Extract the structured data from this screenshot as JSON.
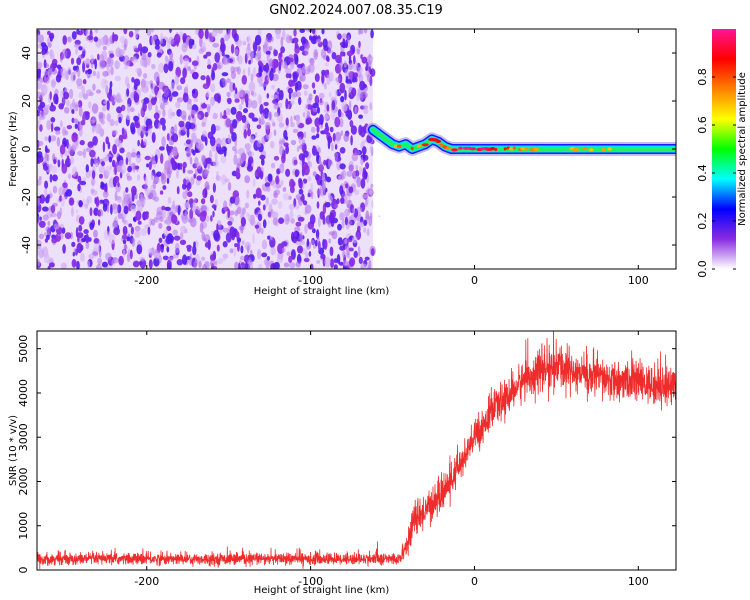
{
  "title": "GN02.2024.007.08.35.C19",
  "chart_data": [
    {
      "type": "heatmap",
      "xlabel": "Height of straight line (km)",
      "ylabel": "Frequency (Hz)",
      "xlim": [
        -267,
        123
      ],
      "ylim": [
        -50,
        50
      ],
      "xticks": [
        -200,
        -100,
        0,
        100
      ],
      "yticks": [
        -40,
        -20,
        0,
        20,
        40
      ],
      "noise_region": {
        "x": [
          -267,
          -62
        ],
        "y": [
          -50,
          50
        ],
        "typical_amplitude": [
          0.1,
          0.3
        ]
      },
      "signal_track": [
        {
          "x": -62,
          "y": 8,
          "amp": 0.5
        },
        {
          "x": -58,
          "y": 6,
          "amp": 0.55
        },
        {
          "x": -54,
          "y": 4,
          "amp": 0.6
        },
        {
          "x": -50,
          "y": 2,
          "amp": 0.7
        },
        {
          "x": -46,
          "y": 1,
          "amp": 0.8
        },
        {
          "x": -42,
          "y": 2,
          "amp": 0.75
        },
        {
          "x": -38,
          "y": 0,
          "amp": 0.7
        },
        {
          "x": -34,
          "y": 1,
          "amp": 0.75
        },
        {
          "x": -30,
          "y": 2,
          "amp": 0.8
        },
        {
          "x": -26,
          "y": 4,
          "amp": 0.85
        },
        {
          "x": -22,
          "y": 3,
          "amp": 0.8
        },
        {
          "x": -18,
          "y": 1,
          "amp": 0.8
        },
        {
          "x": -14,
          "y": 0,
          "amp": 0.85
        },
        {
          "x": -5,
          "y": 0,
          "amp": 0.9
        },
        {
          "x": 5,
          "y": 0,
          "amp": 0.95
        },
        {
          "x": 15,
          "y": 0,
          "amp": 0.85
        },
        {
          "x": 30,
          "y": 0,
          "amp": 0.65
        },
        {
          "x": 60,
          "y": 0,
          "amp": 0.6
        },
        {
          "x": 90,
          "y": 0,
          "amp": 0.65
        },
        {
          "x": 123,
          "y": 0,
          "amp": 0.55
        }
      ],
      "colorbar": {
        "label": "Normalized spectral amplitude",
        "range": [
          0,
          1
        ],
        "ticks": [
          0.0,
          0.2,
          0.4,
          0.6,
          0.8
        ],
        "tick_labels": [
          "0.0",
          "0.2",
          "0.4",
          "0.6",
          "0.8"
        ],
        "colors": [
          "#ffffff",
          "#8a2be2",
          "#0000ff",
          "#00ffff",
          "#00ff00",
          "#ffff00",
          "#ff8000",
          "#ff0000",
          "#ff1493"
        ]
      }
    },
    {
      "type": "line",
      "xlabel": "Height of straight line (km)",
      "ylabel": "SNR (10 * v/v)",
      "xlim": [
        -267,
        123
      ],
      "ylim": [
        0,
        5400
      ],
      "xticks": [
        -200,
        -100,
        0,
        100
      ],
      "yticks": [
        0,
        1000,
        2000,
        3000,
        4000,
        5000
      ],
      "color": "#ee2c2c",
      "series": [
        {
          "x": [
            -267,
            -200,
            -100,
            -45,
            -40,
            -37,
            -35,
            -30,
            -25,
            -20,
            -15,
            -10,
            -5,
            0,
            5,
            10,
            20,
            30,
            40,
            50,
            60,
            70,
            80,
            90,
            100,
            110,
            123
          ],
          "y": [
            250,
            250,
            250,
            250,
            700,
            1200,
            1050,
            1400,
            1500,
            1700,
            1950,
            2300,
            2600,
            3000,
            3250,
            3550,
            3900,
            4300,
            4500,
            4600,
            4500,
            4400,
            4300,
            4250,
            4250,
            4150,
            4200
          ],
          "noise_amplitude": [
            120,
            120,
            120,
            120,
            300,
            350,
            350,
            350,
            350,
            350,
            350,
            350,
            350,
            350,
            350,
            350,
            350,
            400,
            450,
            450,
            450,
            450,
            400,
            400,
            400,
            400,
            400
          ]
        }
      ]
    }
  ]
}
